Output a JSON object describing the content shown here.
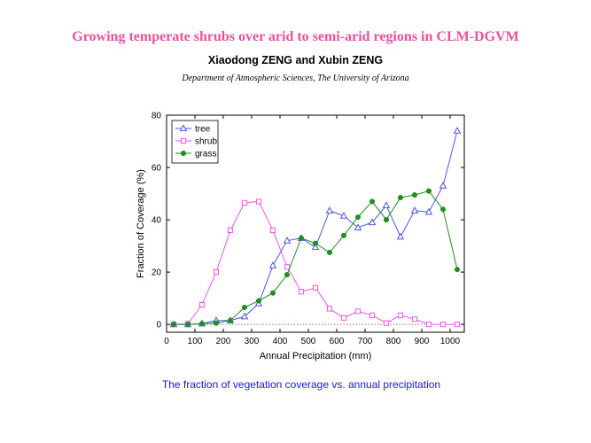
{
  "header": {
    "title": "Growing temperate shrubs over arid to semi-arid regions in CLM-DGVM",
    "authors": "Xiaodong ZENG and Xubin ZENG",
    "affiliation": "Department of Atmospheric Sciences, The University of Arizona"
  },
  "caption": "The fraction of vegetation coverage vs. annual precipitation",
  "colors": {
    "tree": "#4f55e6",
    "shrub": "#ee55ee",
    "grass": "#1f8f1f"
  },
  "chart_data": {
    "type": "line",
    "title": "",
    "xlabel": "Annual Precipitation (mm)",
    "ylabel": "Fraction of Coverage (%)",
    "xlim": [
      0,
      1050
    ],
    "ylim": [
      -3,
      80
    ],
    "xticks": [
      0,
      100,
      200,
      300,
      400,
      500,
      600,
      700,
      800,
      900,
      1000
    ],
    "yticks": [
      0,
      20,
      40,
      60,
      80
    ],
    "legend_position": "top-left",
    "x": [
      25,
      75,
      125,
      175,
      225,
      275,
      325,
      375,
      425,
      475,
      525,
      575,
      625,
      675,
      725,
      775,
      825,
      875,
      925,
      975,
      1025
    ],
    "series": [
      {
        "name": "tree",
        "marker": "triangle-open",
        "values": [
          0,
          0,
          0.3,
          1.5,
          1.5,
          3,
          8,
          22.5,
          32,
          33,
          29.5,
          43.5,
          41.5,
          37,
          39,
          45.5,
          33.5,
          43.5,
          43,
          53,
          74
        ]
      },
      {
        "name": "shrub",
        "marker": "square-open",
        "values": [
          0,
          0.2,
          7.5,
          20,
          36,
          46.5,
          47,
          36,
          22,
          12.5,
          14,
          6,
          2.5,
          5,
          3.5,
          0.5,
          3.5,
          2,
          0,
          0,
          0
        ]
      },
      {
        "name": "grass",
        "marker": "circle-filled",
        "values": [
          0,
          0,
          0.3,
          0.5,
          1.5,
          6.5,
          9,
          12,
          19,
          33,
          31,
          27.5,
          34,
          41,
          47,
          40,
          48.5,
          49.5,
          51,
          44,
          21
        ]
      }
    ]
  }
}
